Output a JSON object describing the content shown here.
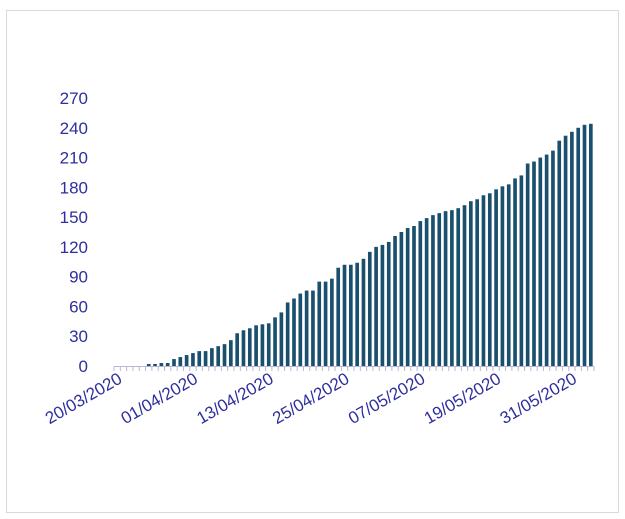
{
  "chart_data": {
    "type": "bar",
    "title": "",
    "xlabel": "",
    "ylabel": "",
    "ylim": [
      0,
      270
    ],
    "yticks": [
      0,
      30,
      60,
      90,
      120,
      150,
      180,
      210,
      240,
      270
    ],
    "xtick_labels": [
      "20/03/2020",
      "01/04/2020",
      "13/04/2020",
      "25/04/2020",
      "07/05/2020",
      "19/05/2020",
      "31/05/2020"
    ],
    "grid": false,
    "legend": "none",
    "colors": {
      "bar": "#1a4f6e",
      "ticks": "#2e2e9e",
      "axis": "#b8b8d6"
    },
    "categories": [
      "20/03/2020",
      "21/03/2020",
      "22/03/2020",
      "23/03/2020",
      "24/03/2020",
      "25/03/2020",
      "26/03/2020",
      "27/03/2020",
      "28/03/2020",
      "29/03/2020",
      "30/03/2020",
      "31/03/2020",
      "01/04/2020",
      "02/04/2020",
      "03/04/2020",
      "04/04/2020",
      "05/04/2020",
      "06/04/2020",
      "07/04/2020",
      "08/04/2020",
      "09/04/2020",
      "10/04/2020",
      "11/04/2020",
      "12/04/2020",
      "13/04/2020",
      "14/04/2020",
      "15/04/2020",
      "16/04/2020",
      "17/04/2020",
      "18/04/2020",
      "19/04/2020",
      "20/04/2020",
      "21/04/2020",
      "22/04/2020",
      "23/04/2020",
      "24/04/2020",
      "25/04/2020",
      "26/04/2020",
      "27/04/2020",
      "28/04/2020",
      "29/04/2020",
      "30/04/2020",
      "01/05/2020",
      "02/05/2020",
      "03/05/2020",
      "04/05/2020",
      "05/05/2020",
      "06/05/2020",
      "07/05/2020",
      "08/05/2020",
      "09/05/2020",
      "10/05/2020",
      "11/05/2020",
      "12/05/2020",
      "13/05/2020",
      "14/05/2020",
      "15/05/2020",
      "16/05/2020",
      "17/05/2020",
      "18/05/2020",
      "19/05/2020",
      "20/05/2020",
      "21/05/2020",
      "22/05/2020",
      "23/05/2020",
      "24/05/2020",
      "25/05/2020",
      "26/05/2020",
      "27/05/2020",
      "28/05/2020",
      "29/05/2020",
      "30/05/2020",
      "31/05/2020",
      "01/06/2020",
      "02/06/2020",
      "03/06/2020"
    ],
    "values": [
      0,
      0,
      0,
      0,
      0,
      2,
      2,
      3,
      3,
      7,
      9,
      11,
      13,
      15,
      15,
      18,
      20,
      22,
      26,
      33,
      36,
      38,
      41,
      42,
      43,
      49,
      54,
      64,
      68,
      73,
      76,
      76,
      85,
      85,
      88,
      99,
      102,
      102,
      104,
      108,
      115,
      120,
      122,
      125,
      131,
      135,
      139,
      141,
      146,
      149,
      152,
      154,
      156,
      157,
      159,
      162,
      166,
      168,
      172,
      174,
      178,
      181,
      183,
      189,
      192,
      204,
      206,
      210,
      213,
      217,
      227,
      232,
      236,
      240,
      243,
      244
    ],
    "last_values": [
      244,
      244
    ]
  }
}
